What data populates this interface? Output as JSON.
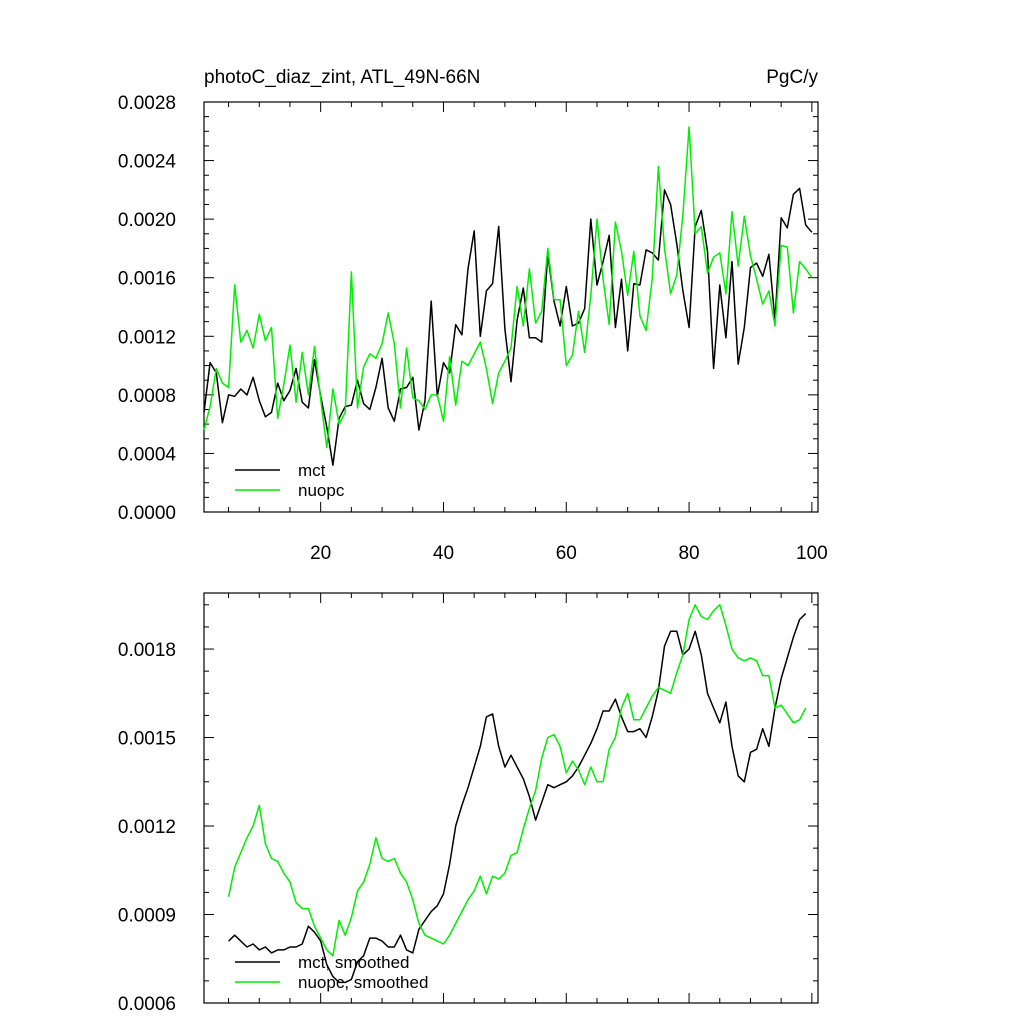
{
  "chart_data": [
    {
      "type": "line",
      "title": "photoC_diaz_zint, ATL_49N-66N",
      "units": "PgC/y",
      "xlim": [
        1,
        101
      ],
      "ylim": [
        0.0,
        0.0028
      ],
      "xticks": [
        20,
        40,
        60,
        80,
        100
      ],
      "xtick_labels": [
        "20",
        "40",
        "60",
        "80",
        "100"
      ],
      "yticks": [
        0.0,
        0.0004,
        0.0008,
        0.0012,
        0.0016,
        0.002,
        0.0024,
        0.0028
      ],
      "ytick_labels": [
        "0.0000",
        "0.0004",
        "0.0008",
        "0.0012",
        "0.0016",
        "0.0020",
        "0.0024",
        "0.0028"
      ],
      "series": [
        {
          "name": "mct",
          "color": "#000000",
          "values": [
            0.00068,
            0.00102,
            0.00095,
            0.00061,
            0.0008,
            0.00079,
            0.00084,
            0.0008,
            0.00092,
            0.00076,
            0.00065,
            0.00068,
            0.00088,
            0.00076,
            0.00083,
            0.00098,
            0.00075,
            0.00071,
            0.00104,
            0.00079,
            0.00058,
            0.00032,
            0.00064,
            0.00072,
            0.00073,
            0.0009,
            0.00074,
            0.0007,
            0.00085,
            0.00105,
            0.00071,
            0.00062,
            0.00084,
            0.00085,
            0.00092,
            0.00056,
            0.00076,
            0.00144,
            0.00079,
            0.00102,
            0.00095,
            0.00128,
            0.00121,
            0.00166,
            0.00192,
            0.0012,
            0.00151,
            0.00156,
            0.00195,
            0.00125,
            0.00089,
            0.00131,
            0.00153,
            0.00119,
            0.00119,
            0.00116,
            0.00176,
            0.00144,
            0.00127,
            0.00154,
            0.00127,
            0.00129,
            0.00139,
            0.002,
            0.00155,
            0.00171,
            0.00189,
            0.00126,
            0.00159,
            0.0011,
            0.00156,
            0.00155,
            0.00179,
            0.00177,
            0.00172,
            0.0022,
            0.0021,
            0.00183,
            0.00151,
            0.00126,
            0.00195,
            0.00206,
            0.00178,
            0.00098,
            0.00155,
            0.00119,
            0.00171,
            0.00101,
            0.00126,
            0.00167,
            0.0017,
            0.00161,
            0.00176,
            0.00131,
            0.00201,
            0.00194,
            0.00217,
            0.00221,
            0.00196,
            0.00191
          ]
        },
        {
          "name": "nuopc",
          "color": "#00ee00",
          "values": [
            0.00056,
            0.00072,
            0.00098,
            0.00088,
            0.00085,
            0.00155,
            0.00116,
            0.00124,
            0.00112,
            0.00135,
            0.00117,
            0.00126,
            0.00064,
            0.00087,
            0.00114,
            0.00075,
            0.00109,
            0.0008,
            0.00113,
            0.00077,
            0.00044,
            0.00084,
            0.0006,
            0.00068,
            0.00164,
            0.00071,
            0.00099,
            0.00108,
            0.00105,
            0.00115,
            0.00136,
            0.00115,
            0.00071,
            0.00112,
            0.00078,
            0.00076,
            0.0007,
            0.0008,
            0.0008,
            0.00062,
            0.00106,
            0.00073,
            0.00103,
            0.001,
            0.00108,
            0.00116,
            0.00098,
            0.00074,
            0.00095,
            0.00103,
            0.00112,
            0.00154,
            0.00127,
            0.00166,
            0.00129,
            0.00137,
            0.0018,
            0.00145,
            0.00145,
            0.001,
            0.00107,
            0.00137,
            0.00109,
            0.00148,
            0.002,
            0.00159,
            0.00128,
            0.00198,
            0.00178,
            0.00148,
            0.00178,
            0.00134,
            0.00124,
            0.00159,
            0.00236,
            0.0018,
            0.00149,
            0.00162,
            0.00203,
            0.00263,
            0.0019,
            0.00195,
            0.00163,
            0.00174,
            0.00177,
            0.00149,
            0.00205,
            0.00168,
            0.00202,
            0.00175,
            0.00159,
            0.00142,
            0.00151,
            0.00127,
            0.00182,
            0.00181,
            0.00136,
            0.00171,
            0.00166,
            0.0016
          ]
        }
      ],
      "legend": [
        "mct",
        "nuopc"
      ],
      "legend_position": "bottom-left"
    },
    {
      "type": "line",
      "xlim": [
        1,
        101
      ],
      "ylim": [
        0.0006,
        0.00199
      ],
      "xticks": [
        20,
        40,
        60,
        80,
        100
      ],
      "yticks": [
        0.0006,
        0.0009,
        0.0012,
        0.0015,
        0.0018
      ],
      "ytick_labels": [
        "0.0006",
        "0.0009",
        "0.0012",
        "0.0015",
        "0.0018"
      ],
      "series": [
        {
          "name": "mct, smoothed",
          "color": "#000000",
          "x_start": 5,
          "values": [
            0.00081,
            0.00083,
            0.00081,
            0.00079,
            0.0008,
            0.00078,
            0.00079,
            0.00077,
            0.00078,
            0.00078,
            0.00079,
            0.00079,
            0.0008,
            0.00086,
            0.00084,
            0.00081,
            0.00073,
            0.00069,
            0.00067,
            0.00067,
            0.00068,
            0.00074,
            0.00076,
            0.00082,
            0.00082,
            0.00081,
            0.00079,
            0.00079,
            0.00083,
            0.00078,
            0.00077,
            0.00085,
            0.00088,
            0.00091,
            0.00093,
            0.00097,
            0.00107,
            0.0012,
            0.00127,
            0.00133,
            0.0014,
            0.00147,
            0.00157,
            0.00158,
            0.00147,
            0.0014,
            0.00144,
            0.0014,
            0.00136,
            0.0013,
            0.00122,
            0.00128,
            0.00134,
            0.00133,
            0.00134,
            0.00135,
            0.00137,
            0.0014,
            0.00144,
            0.00148,
            0.00153,
            0.00159,
            0.00159,
            0.00163,
            0.00157,
            0.00152,
            0.00152,
            0.00153,
            0.0015,
            0.00157,
            0.00166,
            0.00181,
            0.00186,
            0.00186,
            0.00178,
            0.0018,
            0.00186,
            0.00178,
            0.00165,
            0.0016,
            0.00155,
            0.00162,
            0.00147,
            0.00137,
            0.00135,
            0.00145,
            0.00146,
            0.00153,
            0.00147,
            0.0016,
            0.0017,
            0.00177,
            0.00184,
            0.0019,
            0.00192
          ]
        },
        {
          "name": "nuopc, smoothed",
          "color": "#00ee00",
          "x_start": 5,
          "values": [
            0.00096,
            0.00106,
            0.00111,
            0.00116,
            0.0012,
            0.00127,
            0.00114,
            0.00109,
            0.00108,
            0.00104,
            0.00101,
            0.00094,
            0.00092,
            0.00092,
            0.00086,
            0.00082,
            0.00078,
            0.00076,
            0.00088,
            0.00083,
            0.00089,
            0.00098,
            0.00101,
            0.00107,
            0.00116,
            0.00109,
            0.00108,
            0.00109,
            0.00104,
            0.00101,
            0.00095,
            0.00087,
            0.00083,
            0.00082,
            0.00081,
            0.0008,
            0.00083,
            0.00087,
            0.00091,
            0.00095,
            0.00098,
            0.00103,
            0.00097,
            0.00103,
            0.00102,
            0.00104,
            0.0011,
            0.00111,
            0.00119,
            0.00126,
            0.00132,
            0.00143,
            0.0015,
            0.00151,
            0.00147,
            0.00138,
            0.00142,
            0.00139,
            0.00134,
            0.0014,
            0.00135,
            0.00135,
            0.00146,
            0.0015,
            0.0016,
            0.00165,
            0.00156,
            0.00156,
            0.0016,
            0.00164,
            0.00167,
            0.00166,
            0.00165,
            0.00172,
            0.00178,
            0.0019,
            0.00195,
            0.00191,
            0.0019,
            0.00193,
            0.00195,
            0.00188,
            0.0018,
            0.00177,
            0.00176,
            0.00177,
            0.00176,
            0.00171,
            0.00171,
            0.0016,
            0.00161,
            0.00158,
            0.00155,
            0.00156,
            0.0016
          ]
        }
      ],
      "legend": [
        "mct, smoothed",
        "nuopc, smoothed"
      ],
      "legend_position": "bottom-left"
    }
  ]
}
